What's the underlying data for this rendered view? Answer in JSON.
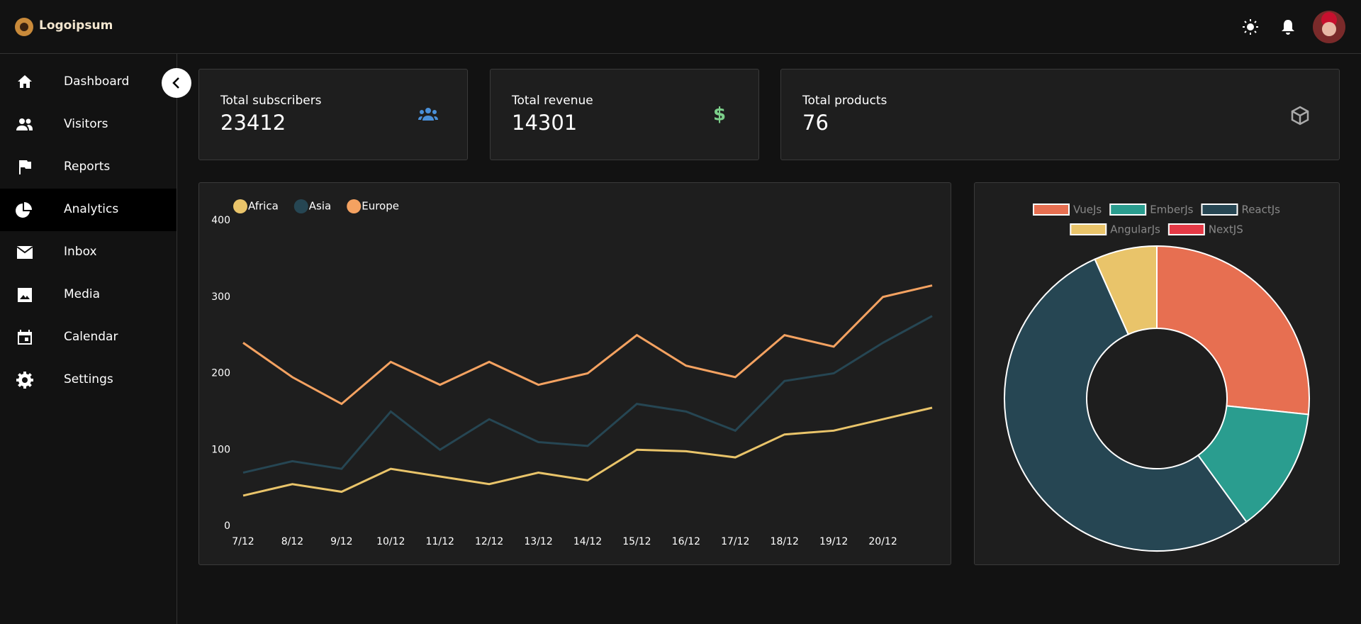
{
  "brand": "Logoipsum",
  "nav": [
    "Dashboard",
    "Visitors",
    "Reports",
    "Analytics",
    "Inbox",
    "Media",
    "Calendar",
    "Settings"
  ],
  "active_nav": 3,
  "cards": [
    {
      "label": "Total subscribers",
      "value": 23412
    },
    {
      "label": "Total revenue",
      "value": 14301
    },
    {
      "label": "Total products",
      "value": 76
    }
  ],
  "line_chart": {
    "type": "line",
    "categories": [
      "7/12",
      "8/12",
      "9/12",
      "10/12",
      "11/12",
      "12/12",
      "13/12",
      "14/12",
      "15/12",
      "16/12",
      "17/12",
      "18/12",
      "19/12",
      "20/12",
      null
    ],
    "series": [
      {
        "name": "Africa",
        "color": "#e9c46a",
        "values": [
          40,
          55,
          45,
          75,
          65,
          55,
          70,
          60,
          100,
          98,
          90,
          120,
          125,
          140,
          155
        ]
      },
      {
        "name": "Asia",
        "color": "#264653",
        "values": [
          70,
          85,
          75,
          150,
          100,
          140,
          110,
          105,
          160,
          150,
          125,
          190,
          200,
          240,
          275
        ]
      },
      {
        "name": "Europe",
        "color": "#f4a261",
        "values": [
          240,
          195,
          160,
          215,
          185,
          215,
          185,
          200,
          250,
          210,
          195,
          250,
          235,
          300,
          315
        ]
      }
    ],
    "ylim": [
      0,
      400
    ],
    "yticks": [
      0,
      100,
      200,
      300,
      400
    ],
    "legend": "top-left"
  },
  "doughnut_chart": {
    "type": "doughnut",
    "categories": [
      "VueJs",
      "EmberJs",
      "ReactJs",
      "AngularJs",
      "NextJS"
    ],
    "values": [
      20,
      10,
      40,
      5,
      0
    ],
    "colors": [
      "#e76f51",
      "#2a9d8f",
      "#264653",
      "#e9c46a",
      "#e63946"
    ],
    "legend": "top"
  }
}
